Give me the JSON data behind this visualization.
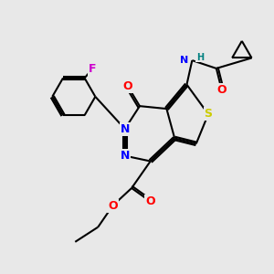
{
  "bg_color": "#e8e8e8",
  "atom_colors": {
    "C": "#000000",
    "N": "#0000ff",
    "O": "#ff0000",
    "S": "#cccc00",
    "F": "#cc00cc",
    "H": "#008080"
  },
  "bond_color": "#000000",
  "bond_width": 1.5
}
